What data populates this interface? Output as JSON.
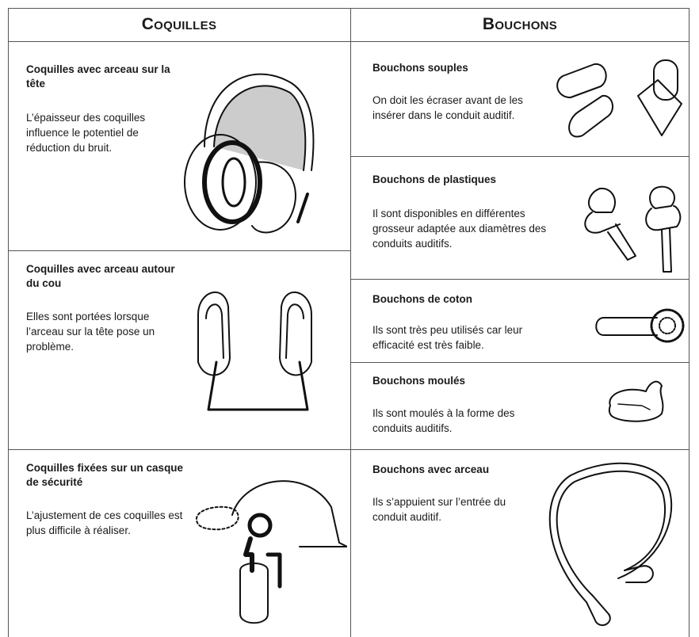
{
  "columns": [
    {
      "header": "Coquilles",
      "items": [
        {
          "title": "Coquilles avec arceau sur la tête",
          "description": "L’épaisseur des coquilles influence le potentiel de réduction du bruit."
        },
        {
          "title": "Coquilles avec arceau autour du cou",
          "description": "Elles sont portées lorsque l’arceau sur la tête pose un problème."
        },
        {
          "title": "Coquilles fixées sur un casque de sécurité",
          "description": "L’ajustement de ces coquilles est plus difficile à réaliser."
        }
      ]
    },
    {
      "header": "Bouchons",
      "items": [
        {
          "title": "Bouchons souples",
          "description": "On doit les écraser avant de les insérer dans le conduit auditif."
        },
        {
          "title": "Bouchons de plastiques",
          "description": "Il sont disponibles en différentes grosseur adaptée aux diamètres des conduits auditifs."
        },
        {
          "title": "Bouchons de coton",
          "description": "Ils sont très peu utilisés car leur efficacité est très faible."
        },
        {
          "title": "Bouchons moulés",
          "description": "Ils sont moulés à la forme des conduits auditifs."
        },
        {
          "title": "Bouchons avec arceau",
          "description": "Ils s’appuient sur l’entrée du conduit auditif."
        }
      ]
    }
  ]
}
